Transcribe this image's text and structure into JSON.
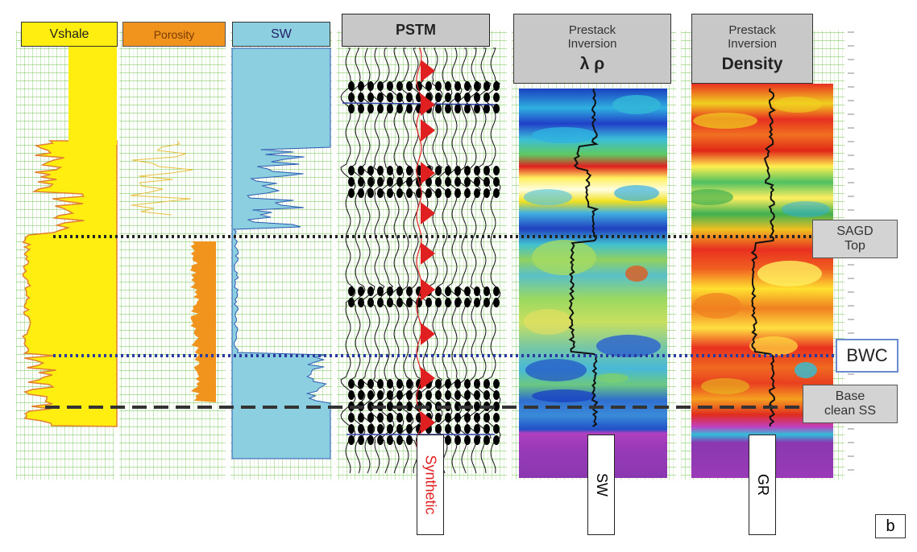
{
  "figure": {
    "panel_letter": "b"
  },
  "tracks": {
    "vshale": {
      "label": "Vshale",
      "fill_color": "#ffee10"
    },
    "porosity": {
      "label": "Porosity",
      "fill_color": "#f0941e"
    },
    "sw": {
      "label": "SW",
      "fill_color": "#8ccfe0"
    },
    "pstm": {
      "label": "PSTM",
      "curve_label": "Synthetic",
      "curve_color": "#e02020"
    },
    "lambda_rho": {
      "label_sub": "Prestack Inversion",
      "label_main": "λ ρ",
      "curve_label": "SW"
    },
    "density": {
      "label_sub": "Prestack Inversion",
      "label_main": "Density",
      "curve_label": "GR"
    }
  },
  "markers": {
    "sagd_top": {
      "label_line1": "SAGD",
      "label_line2": "Top",
      "line_color": "#222222",
      "style": "dotted"
    },
    "bwc": {
      "label": "BWC",
      "line_color": "#2a3aa0",
      "style": "dotted"
    },
    "base_clean_ss": {
      "label_line1": "Base",
      "label_line2": "clean SS",
      "line_color": "#333333",
      "style": "dashed"
    }
  }
}
